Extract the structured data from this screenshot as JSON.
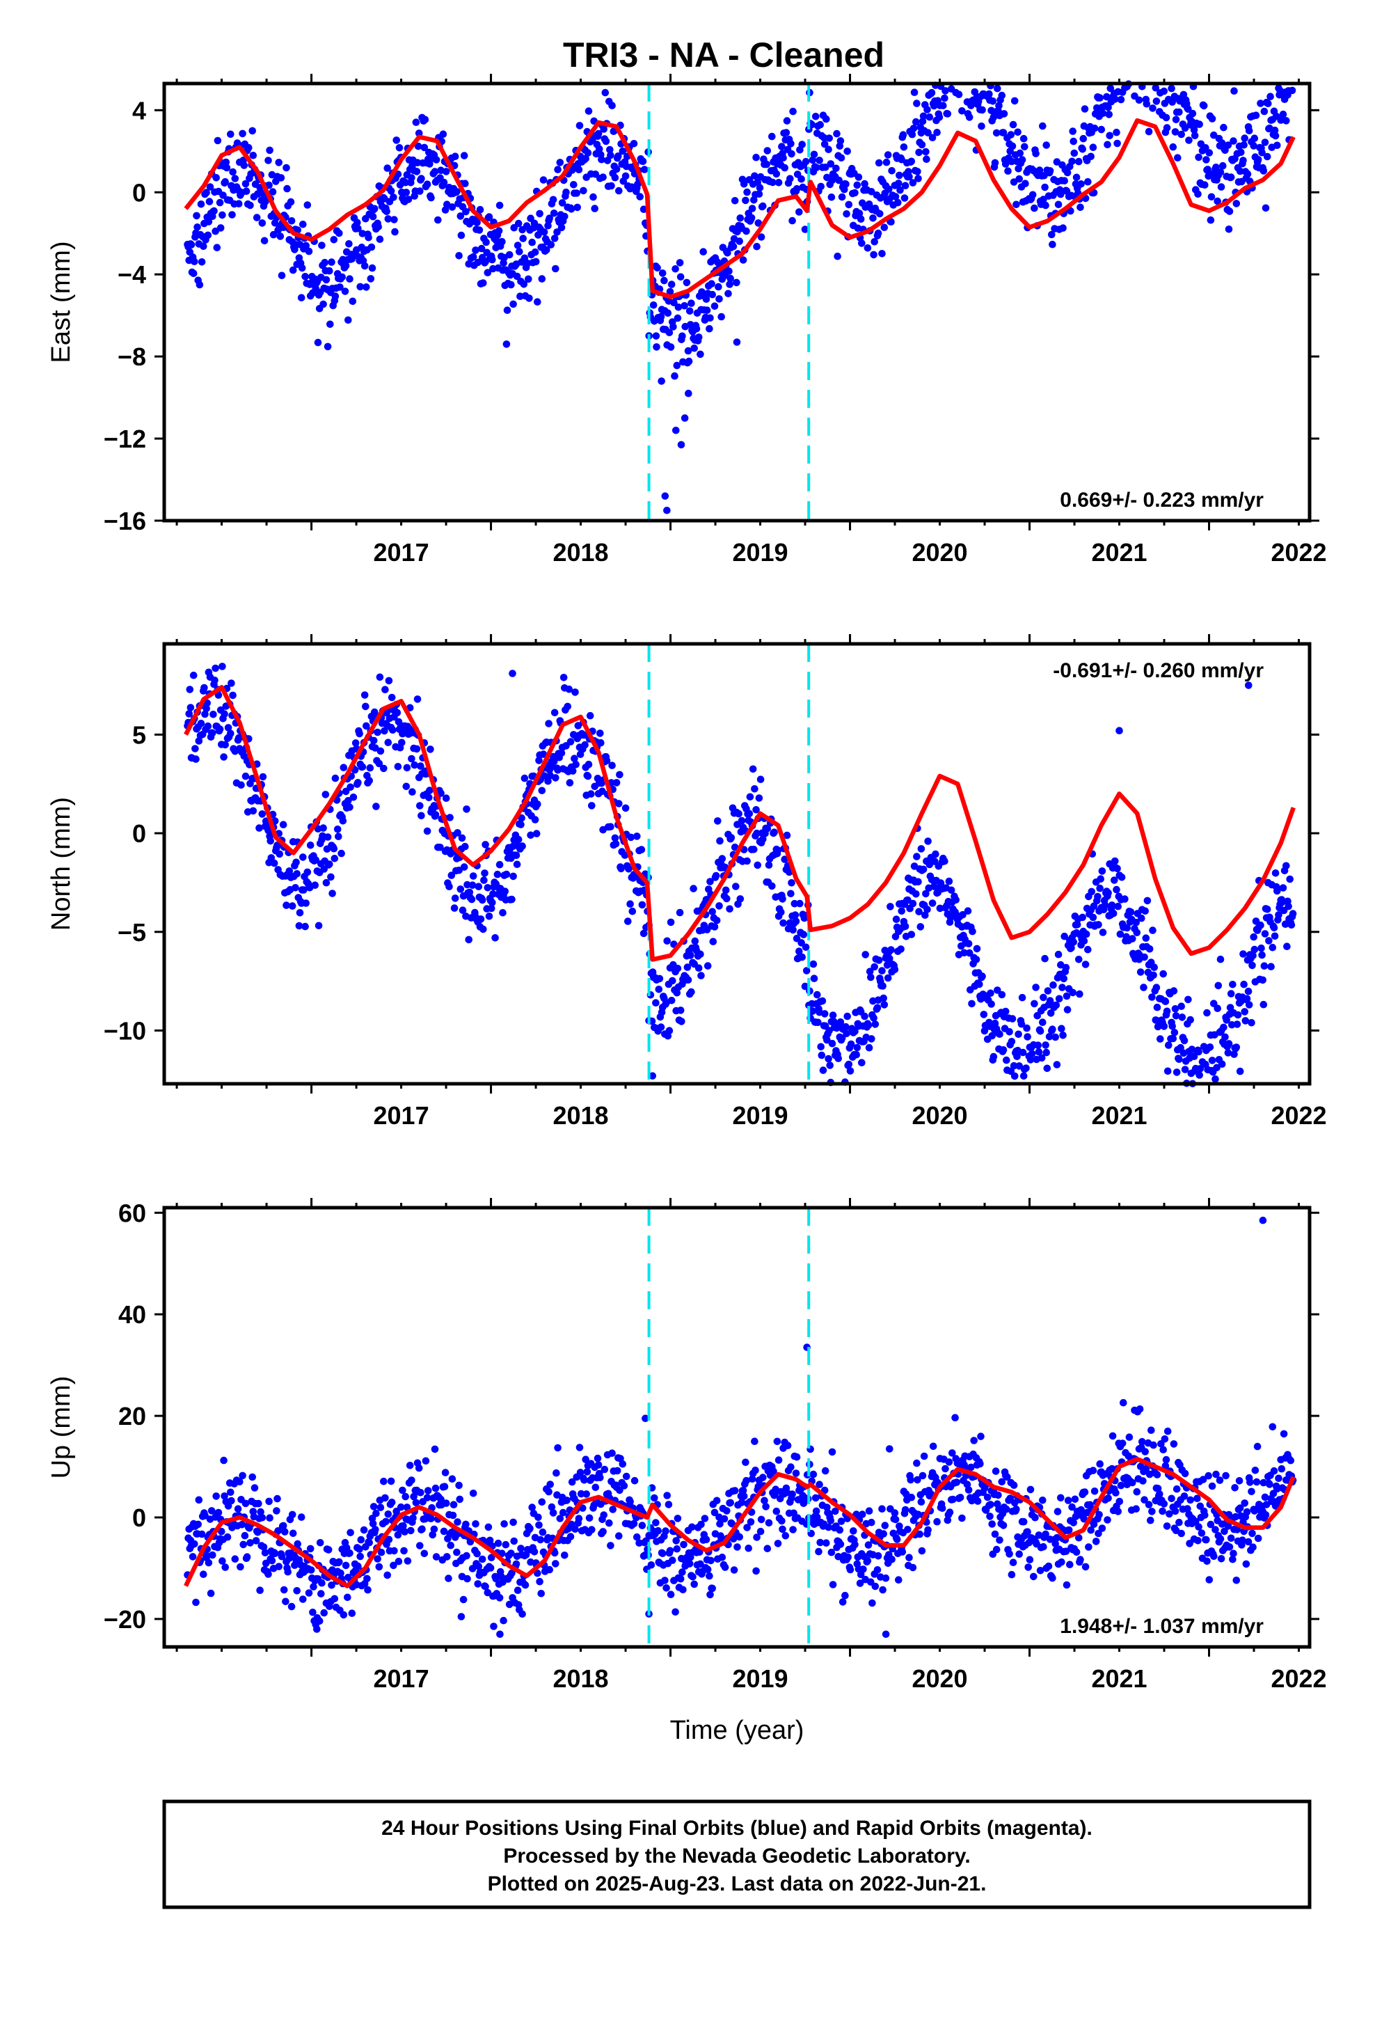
{
  "title": "TRI3  - NA - Cleaned",
  "footer": {
    "line1": "24 Hour Positions Using Final Orbits (blue) and Rapid Orbits (magenta).",
    "line2": "Processed by the Nevada Geodetic Laboratory.",
    "line3": "Plotted on 2025-Aug-23. Last data on 2022-Jun-21."
  },
  "colors": {
    "points": "#0000ff",
    "model": "#ff0000",
    "offsets": "#00e5ee",
    "frame": "#000000"
  },
  "chart_data": [
    {
      "type": "scatter",
      "ylabel": "East (mm)",
      "xlabel": "",
      "xlim": [
        2016.18,
        2022.56
      ],
      "ylim": [
        -16,
        5.3
      ],
      "x_ticks": [
        2017,
        2018,
        2019,
        2020,
        2021,
        2022
      ],
      "y_ticks": [
        4,
        0,
        -4,
        -8,
        -12,
        -16
      ],
      "rate_label": "0.669+/- 0.223 mm/yr",
      "rate_position": "bottom-right",
      "offset_lines": [
        2018.88,
        2019.77
      ],
      "model": {
        "mean": 0.0,
        "rate": 0.669,
        "ref_year": 2019.4,
        "annual_amp": 2.8,
        "annual_phase_year": 0.62,
        "steps": [
          {
            "year": 2018.88,
            "size": -4.6
          },
          {
            "year": 2019.77,
            "size": 2.9
          }
        ],
        "postseismic": [
          {
            "year": 2018.88,
            "amp": 3.6,
            "tau": 0.5
          }
        ]
      },
      "outliers": [
        [
          2018.92,
          -7.0
        ],
        [
          2018.95,
          -9.2
        ],
        [
          2018.97,
          -14.8
        ],
        [
          2018.98,
          -15.5
        ],
        [
          2019.03,
          -11.6
        ],
        [
          2019.06,
          -12.3
        ],
        [
          2019.08,
          -11.0
        ],
        [
          2019.1,
          -9.8
        ],
        [
          2019.37,
          -7.3
        ]
      ],
      "x": [
        2016.3,
        2016.4,
        2016.5,
        2016.6,
        2016.7,
        2016.8,
        2016.9,
        2017.0,
        2017.1,
        2017.2,
        2017.3,
        2017.4,
        2017.5,
        2017.6,
        2017.7,
        2017.8,
        2017.9,
        2018.0,
        2018.1,
        2018.2,
        2018.3,
        2018.4,
        2018.5,
        2018.6,
        2018.7,
        2018.8,
        2018.87,
        2018.9,
        2019.0,
        2019.1,
        2019.2,
        2019.3,
        2019.4,
        2019.5,
        2019.6,
        2019.7,
        2019.76,
        2019.78,
        2019.9,
        2020.0,
        2020.1,
        2020.2,
        2020.3,
        2020.4,
        2020.5,
        2020.6,
        2020.7,
        2020.8,
        2020.9,
        2021.0,
        2021.1,
        2021.2,
        2021.3,
        2021.4,
        2021.5,
        2021.6,
        2021.7,
        2021.8,
        2021.9,
        2022.0,
        2022.1,
        2022.2,
        2022.3,
        2022.4,
        2022.47
      ],
      "y": [
        -0.8,
        0.3,
        1.8,
        2.2,
        1.0,
        -0.9,
        -2.0,
        -2.3,
        -1.8,
        -1.1,
        -0.6,
        0.1,
        1.6,
        2.7,
        2.5,
        0.8,
        -0.9,
        -1.7,
        -1.4,
        -0.5,
        0.1,
        0.8,
        2.2,
        3.4,
        3.2,
        1.5,
        -0.1,
        -4.8,
        -5.1,
        -4.8,
        -4.2,
        -3.6,
        -3.0,
        -1.8,
        -0.4,
        -0.2,
        -0.9,
        0.5,
        -1.6,
        -2.2,
        -1.9,
        -1.3,
        -0.8,
        0.0,
        1.3,
        2.9,
        2.5,
        0.6,
        -0.8,
        -1.7,
        -1.4,
        -0.8,
        -0.1,
        0.5,
        1.7,
        3.5,
        3.2,
        1.4,
        -0.6,
        -0.9,
        -0.5,
        0.2,
        0.6,
        1.4,
        2.7
      ]
    },
    {
      "type": "scatter",
      "ylabel": "North (mm)",
      "xlabel": "",
      "xlim": [
        2016.18,
        2022.56
      ],
      "ylim": [
        -12.7,
        9.6
      ],
      "x_ticks": [
        2017,
        2018,
        2019,
        2020,
        2021,
        2022
      ],
      "y_ticks": [
        5,
        0,
        -5,
        -10
      ],
      "rate_label": "-0.691+/- 0.260 mm/yr",
      "rate_position": "top-right",
      "offset_lines": [
        2018.88,
        2019.77
      ],
      "model": {
        "mean": 0.0,
        "rate": -0.691,
        "ref_year": 2019.4,
        "annual_amp": 4.3,
        "annual_phase_year": 0.45,
        "steps": [
          {
            "year": 2018.88,
            "size": -4.2
          },
          {
            "year": 2019.77,
            "size": -1.8
          }
        ],
        "postseismic": []
      },
      "outliers": [
        [
          2018.88,
          -9.5
        ],
        [
          2018.9,
          -12.3
        ],
        [
          2022.22,
          7.5
        ],
        [
          2021.5,
          5.2
        ],
        [
          2018.12,
          8.1
        ]
      ],
      "x": [
        2016.3,
        2016.4,
        2016.5,
        2016.6,
        2016.7,
        2016.8,
        2016.9,
        2017.0,
        2017.1,
        2017.2,
        2017.3,
        2017.4,
        2017.5,
        2017.6,
        2017.7,
        2017.8,
        2017.9,
        2018.0,
        2018.1,
        2018.2,
        2018.3,
        2018.4,
        2018.5,
        2018.6,
        2018.7,
        2018.8,
        2018.87,
        2018.9,
        2019.0,
        2019.1,
        2019.2,
        2019.3,
        2019.4,
        2019.5,
        2019.6,
        2019.7,
        2019.76,
        2019.78,
        2019.9,
        2020.0,
        2020.1,
        2020.2,
        2020.3,
        2020.4,
        2020.5,
        2020.6,
        2020.7,
        2020.8,
        2020.9,
        2021.0,
        2021.1,
        2021.2,
        2021.3,
        2021.4,
        2021.5,
        2021.6,
        2021.7,
        2021.8,
        2021.9,
        2022.0,
        2022.1,
        2022.2,
        2022.3,
        2022.4,
        2022.47
      ],
      "y": [
        5.0,
        6.8,
        7.4,
        5.6,
        2.7,
        -0.2,
        -1.0,
        0.2,
        1.5,
        3.0,
        4.7,
        6.3,
        6.7,
        5.0,
        1.8,
        -0.8,
        -1.6,
        -0.9,
        0.2,
        1.7,
        3.6,
        5.5,
        5.9,
        4.1,
        0.8,
        -1.8,
        -2.5,
        -6.4,
        -6.2,
        -5.1,
        -3.8,
        -2.3,
        -0.5,
        1.0,
        0.4,
        -2.3,
        -3.2,
        -4.9,
        -4.7,
        -4.3,
        -3.6,
        -2.5,
        -1.0,
        1.0,
        2.9,
        2.5,
        -0.4,
        -3.4,
        -5.3,
        -5.0,
        -4.1,
        -3.0,
        -1.6,
        0.4,
        2.0,
        1.0,
        -2.3,
        -4.8,
        -6.1,
        -5.8,
        -4.9,
        -3.8,
        -2.4,
        -0.5,
        1.3
      ]
    },
    {
      "type": "scatter",
      "ylabel": "Up (mm)",
      "xlabel": "Time (year)",
      "xlim": [
        2016.18,
        2022.56
      ],
      "ylim": [
        -25.5,
        61
      ],
      "x_ticks": [
        2017,
        2018,
        2019,
        2020,
        2021,
        2022
      ],
      "y_ticks": [
        60,
        40,
        20,
        0,
        -20
      ],
      "rate_label": "1.948+/- 1.037 mm/yr",
      "rate_position": "bottom-right",
      "offset_lines": [
        2018.88,
        2019.77
      ],
      "model": {
        "mean": -1.0,
        "rate": 1.948,
        "ref_year": 2019.4,
        "annual_amp": 7.0,
        "annual_phase_year": 0.6,
        "steps": [],
        "postseismic": []
      },
      "outliers": [
        [
          2022.3,
          58.5
        ],
        [
          2019.76,
          33.5
        ],
        [
          2018.86,
          19.5
        ],
        [
          2018.88,
          -19.0
        ],
        [
          2020.2,
          -23.0
        ],
        [
          2018.05,
          -23.0
        ],
        [
          2017.03,
          -22.0
        ]
      ],
      "x": [
        2016.3,
        2016.4,
        2016.5,
        2016.6,
        2016.7,
        2016.8,
        2016.9,
        2017.0,
        2017.1,
        2017.2,
        2017.3,
        2017.4,
        2017.5,
        2017.6,
        2017.7,
        2017.8,
        2017.9,
        2018.0,
        2018.1,
        2018.2,
        2018.3,
        2018.4,
        2018.5,
        2018.6,
        2018.7,
        2018.8,
        2018.87,
        2018.9,
        2019.0,
        2019.1,
        2019.2,
        2019.3,
        2019.4,
        2019.5,
        2019.6,
        2019.7,
        2019.76,
        2019.78,
        2019.9,
        2020.0,
        2020.1,
        2020.2,
        2020.3,
        2020.4,
        2020.5,
        2020.6,
        2020.7,
        2020.8,
        2020.9,
        2021.0,
        2021.1,
        2021.2,
        2021.3,
        2021.4,
        2021.5,
        2021.6,
        2021.7,
        2021.8,
        2021.9,
        2022.0,
        2022.1,
        2022.2,
        2022.3,
        2022.4,
        2022.47
      ],
      "y": [
        -13.5,
        -6.0,
        -1.0,
        0.0,
        -1.5,
        -3.5,
        -6.0,
        -8.5,
        -11.5,
        -13.5,
        -10.0,
        -4.0,
        0.5,
        2.0,
        0.5,
        -2.0,
        -4.0,
        -6.5,
        -9.5,
        -11.5,
        -8.5,
        -2.0,
        3.0,
        4.0,
        2.5,
        1.0,
        0.0,
        2.5,
        -1.5,
        -4.5,
        -6.5,
        -5.0,
        0.0,
        5.0,
        8.5,
        7.5,
        6.0,
        6.5,
        3.0,
        0.5,
        -3.0,
        -5.5,
        -5.5,
        -1.0,
        6.0,
        9.5,
        8.5,
        6.0,
        5.0,
        3.0,
        -0.5,
        -4.0,
        -2.5,
        4.0,
        10.0,
        11.5,
        10.0,
        8.5,
        6.0,
        3.5,
        -0.5,
        -2.0,
        -2.0,
        2.0,
        8.0
      ]
    }
  ]
}
